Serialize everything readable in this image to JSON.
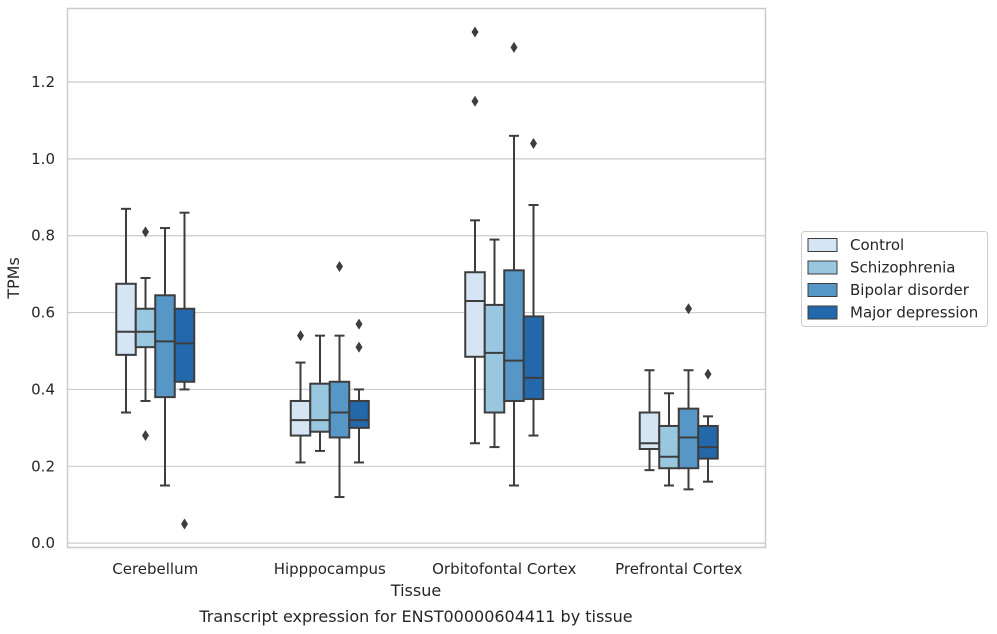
{
  "chart_data": {
    "type": "box",
    "caption": "Transcript expression for ENST00000604411 by tissue",
    "xlabel": "Tissue",
    "ylabel": "TPMs",
    "ylim": [
      -0.01,
      1.39
    ],
    "yticks": [
      0.0,
      0.2,
      0.4,
      0.6,
      0.8,
      1.0,
      1.2
    ],
    "ytick_labels": [
      "0.0",
      "0.2",
      "0.4",
      "0.6",
      "0.8",
      "1.0",
      "1.2"
    ],
    "grid": "horizontal",
    "legend_position": "right",
    "categories": [
      "Cerebellum",
      "Hipppocampus",
      "Orbitofontal Cortex",
      "Prefrontal Cortex"
    ],
    "series": [
      {
        "name": "Control",
        "color": "#d6e5f3",
        "boxes": [
          {
            "whislo": 0.34,
            "q1": 0.49,
            "med": 0.55,
            "q3": 0.675,
            "whishi": 0.87,
            "fliers": []
          },
          {
            "whislo": 0.21,
            "q1": 0.28,
            "med": 0.32,
            "q3": 0.37,
            "whishi": 0.47,
            "fliers": [
              0.54
            ]
          },
          {
            "whislo": 0.26,
            "q1": 0.485,
            "med": 0.63,
            "q3": 0.705,
            "whishi": 0.84,
            "fliers": [
              1.15,
              1.33
            ]
          },
          {
            "whislo": 0.19,
            "q1": 0.245,
            "med": 0.26,
            "q3": 0.34,
            "whishi": 0.45,
            "fliers": []
          }
        ]
      },
      {
        "name": "Schizophrenia",
        "color": "#9ac7e0",
        "boxes": [
          {
            "whislo": 0.37,
            "q1": 0.51,
            "med": 0.55,
            "q3": 0.61,
            "whishi": 0.69,
            "fliers": [
              0.81,
              0.28
            ]
          },
          {
            "whislo": 0.24,
            "q1": 0.29,
            "med": 0.32,
            "q3": 0.415,
            "whishi": 0.54,
            "fliers": []
          },
          {
            "whislo": 0.25,
            "q1": 0.34,
            "med": 0.495,
            "q3": 0.62,
            "whishi": 0.79,
            "fliers": []
          },
          {
            "whislo": 0.15,
            "q1": 0.195,
            "med": 0.225,
            "q3": 0.305,
            "whishi": 0.39,
            "fliers": []
          }
        ]
      },
      {
        "name": "Bipolar disorder",
        "color": "#5697c8",
        "boxes": [
          {
            "whislo": 0.15,
            "q1": 0.38,
            "med": 0.525,
            "q3": 0.645,
            "whishi": 0.82,
            "fliers": []
          },
          {
            "whislo": 0.12,
            "q1": 0.275,
            "med": 0.34,
            "q3": 0.42,
            "whishi": 0.54,
            "fliers": [
              0.72
            ]
          },
          {
            "whislo": 0.15,
            "q1": 0.37,
            "med": 0.475,
            "q3": 0.71,
            "whishi": 1.06,
            "fliers": [
              1.29
            ]
          },
          {
            "whislo": 0.14,
            "q1": 0.195,
            "med": 0.275,
            "q3": 0.35,
            "whishi": 0.45,
            "fliers": [
              0.61
            ]
          }
        ]
      },
      {
        "name": "Major depression",
        "color": "#2268ab",
        "boxes": [
          {
            "whislo": 0.4,
            "q1": 0.42,
            "med": 0.52,
            "q3": 0.61,
            "whishi": 0.86,
            "fliers": [
              0.05
            ]
          },
          {
            "whislo": 0.21,
            "q1": 0.3,
            "med": 0.32,
            "q3": 0.37,
            "whishi": 0.4,
            "fliers": [
              0.57,
              0.51
            ]
          },
          {
            "whislo": 0.28,
            "q1": 0.375,
            "med": 0.43,
            "q3": 0.59,
            "whishi": 0.88,
            "fliers": [
              1.04
            ]
          },
          {
            "whislo": 0.16,
            "q1": 0.22,
            "med": 0.25,
            "q3": 0.305,
            "whishi": 0.33,
            "fliers": [
              0.44
            ]
          }
        ]
      }
    ]
  }
}
